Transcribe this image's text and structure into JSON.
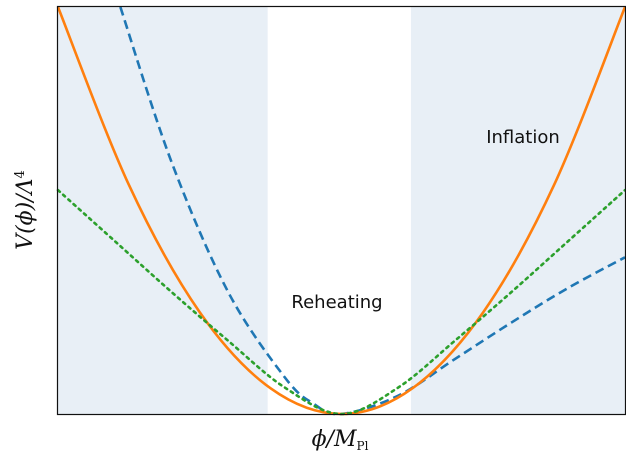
{
  "chart_data": {
    "type": "line",
    "title": "",
    "xlabel": "ϕ/M_Pl",
    "ylabel": "V(ϕ)/Λ⁴",
    "xlim": [
      -1.0,
      1.0
    ],
    "ylim": [
      0.0,
      1.0
    ],
    "grid": false,
    "x_ticks": [],
    "y_ticks": [],
    "regions": [
      {
        "label": "",
        "x_range": [
          -1.0,
          -0.26
        ],
        "color": "#e8eff6"
      },
      {
        "label": "Reheating",
        "x_range": [
          -0.26,
          0.245
        ],
        "color": "#ffffff"
      },
      {
        "label": "Inflation",
        "x_range": [
          0.245,
          1.0
        ],
        "color": "#e8eff6"
      }
    ],
    "series": [
      {
        "style": "dashed",
        "color": "#1f77b4",
        "points": [
          [
            -0.78,
            1.0
          ],
          [
            -0.6,
            0.62
          ],
          [
            -0.4,
            0.3
          ],
          [
            -0.2,
            0.09
          ],
          [
            -0.1,
            0.026
          ],
          [
            0.0,
            0.0
          ],
          [
            0.2,
            0.045
          ],
          [
            0.4,
            0.135
          ],
          [
            0.6,
            0.225
          ],
          [
            0.8,
            0.31
          ],
          [
            1.0,
            0.385
          ]
        ]
      },
      {
        "style": "solid",
        "color": "#ff7f0e",
        "points": [
          [
            -1.0,
            1.0
          ],
          [
            -0.75,
            0.563
          ],
          [
            -0.5,
            0.25
          ],
          [
            -0.25,
            0.063
          ],
          [
            0.0,
            0.0
          ],
          [
            0.25,
            0.063
          ],
          [
            0.5,
            0.25
          ],
          [
            0.75,
            0.563
          ],
          [
            1.0,
            1.0
          ]
        ]
      },
      {
        "style": "dotted",
        "color": "#2ca02c",
        "points": [
          [
            -1.0,
            0.55
          ],
          [
            -0.8,
            0.425
          ],
          [
            -0.6,
            0.3
          ],
          [
            -0.4,
            0.18
          ],
          [
            -0.2,
            0.065
          ],
          [
            0.0,
            0.0
          ],
          [
            0.2,
            0.065
          ],
          [
            0.4,
            0.18
          ],
          [
            0.6,
            0.3
          ],
          [
            0.8,
            0.425
          ],
          [
            1.0,
            0.55
          ]
        ]
      }
    ]
  }
}
